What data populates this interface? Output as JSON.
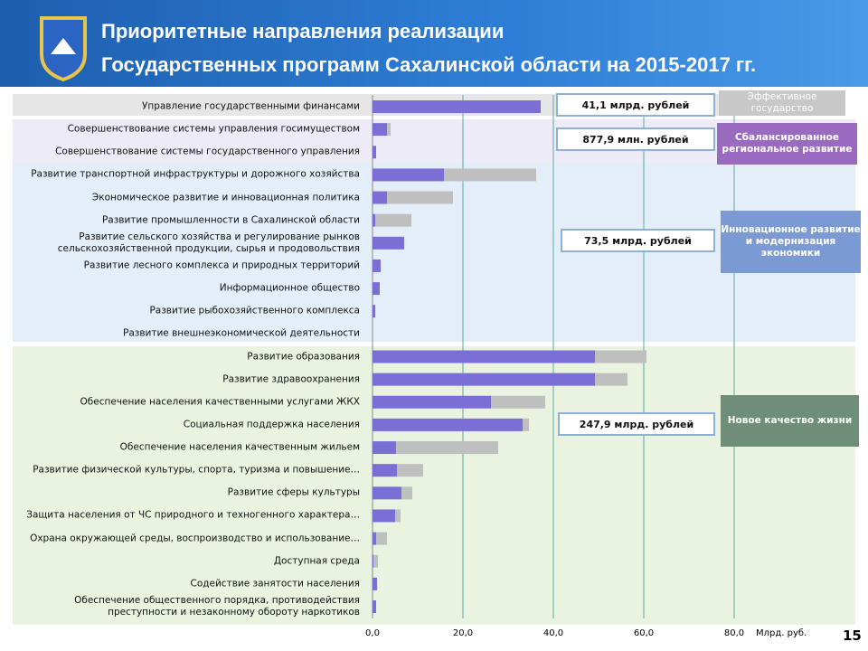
{
  "chart_data": {
    "type": "hbar",
    "title": [
      "Приоритетные направления реализации",
      "Государственных программ Сахалинской области на 2015-2017 гг."
    ],
    "categories": [
      "Управление государственными финансами",
      "Совершенствование системы управления госимуществом",
      "Совершенствование системы государственного управления",
      "Развитие транспортной инфраструктуры и дорожного хозяйства",
      "Экономическое развитие и инновационная политика",
      "Развитие промышленности в Сахалинской области",
      "Развитие сельского хозяйства и регулирование рынков сельскохозяйственной продукции, сырья и продовольствия",
      "Развитие лесного комплекса и природных территорий",
      "Информационное общество",
      "Развитие рыбохозяйственного комплекса",
      "Развитие внешнеэкономической деятельности",
      "Развитие образования",
      "Развитие здравоохранения",
      "Обеспечение населения качественными услугами ЖКХ",
      "Социальная поддержка населения",
      "Обеспечение населения качественным жильем",
      "Развитие физической культуры, спорта, туризма и повышение…",
      "Развитие сферы культуры",
      "Защита населения от ЧС природного и техногенного характера…",
      "Охрана окружающей среды, воспроизводство и использование…",
      "Доступная среда",
      "Содействие занятости населения",
      "Обеспечение общественного порядка, противодействия преступности и незаконному обороту наркотиков"
    ],
    "series": [
      {
        "color": "#7b6fd6",
        "values": [
          37.2,
          3.2,
          0.8,
          15.8,
          3.2,
          0.6,
          7.0,
          1.8,
          1.6,
          0.6,
          0,
          49.2,
          49.2,
          26.2,
          33.2,
          5.2,
          5.4,
          6.4,
          5.0,
          0.8,
          0.2,
          1.0,
          0.8
        ]
      },
      {
        "color": "#bfbfbf",
        "values": [
          0,
          0.8,
          0,
          20.4,
          14.6,
          8.0,
          0,
          0,
          0,
          0,
          0,
          11.4,
          7.2,
          12.0,
          1.4,
          22.6,
          5.8,
          2.4,
          1.2,
          2.4,
          1.0,
          0,
          0
        ]
      }
    ],
    "xlim": [
      0,
      80
    ],
    "xticks": [
      {
        "value": 0,
        "label": "0,0"
      },
      {
        "value": 20,
        "label": "20,0"
      },
      {
        "value": 40,
        "label": "40,0"
      },
      {
        "value": 60,
        "label": "60,0"
      },
      {
        "value": 80,
        "label": "80,0"
      }
    ],
    "x_label": "Млрд. руб.",
    "grid": true,
    "annotations": [
      "41,1 млрд. рублей",
      "877,9 млн. рублей",
      "73,5 млрд. рублей",
      "247,9 млрд. рублей"
    ],
    "groups": [
      "Эффективное государство",
      "Сбалансированное региональное развитие",
      "Инновационное развитие и модернизация экономики",
      "Новое качество жизни"
    ],
    "page_number": "15"
  }
}
